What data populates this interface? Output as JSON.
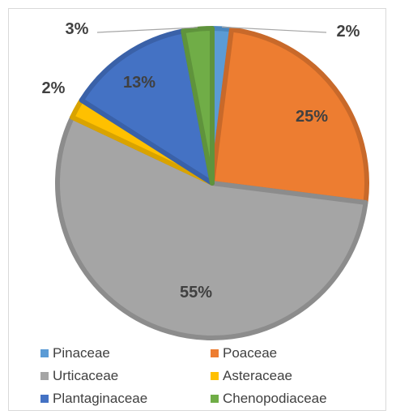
{
  "chart_data": {
    "type": "pie",
    "title": "",
    "slices": [
      {
        "label": "Pinaceae",
        "value": 2,
        "display": "2%",
        "color": "#5B9BD5",
        "border": "#4A86BE"
      },
      {
        "label": "Poaceae",
        "value": 25,
        "display": "25%",
        "color": "#ED7D31",
        "border": "#C8692A"
      },
      {
        "label": "Urticaceae",
        "value": 55,
        "display": "55%",
        "color": "#A5A5A5",
        "border": "#8C8C8C"
      },
      {
        "label": "Asteraceae",
        "value": 2,
        "display": "2%",
        "color": "#FFC000",
        "border": "#D9A300"
      },
      {
        "label": "Plantaginaceae",
        "value": 13,
        "display": "13%",
        "color": "#4472C4",
        "border": "#3A61A8"
      },
      {
        "label": "Chenopodiaceae",
        "value": 3,
        "display": "3%",
        "color": "#70AD47",
        "border": "#5F933C"
      }
    ],
    "legend_position": "bottom"
  }
}
